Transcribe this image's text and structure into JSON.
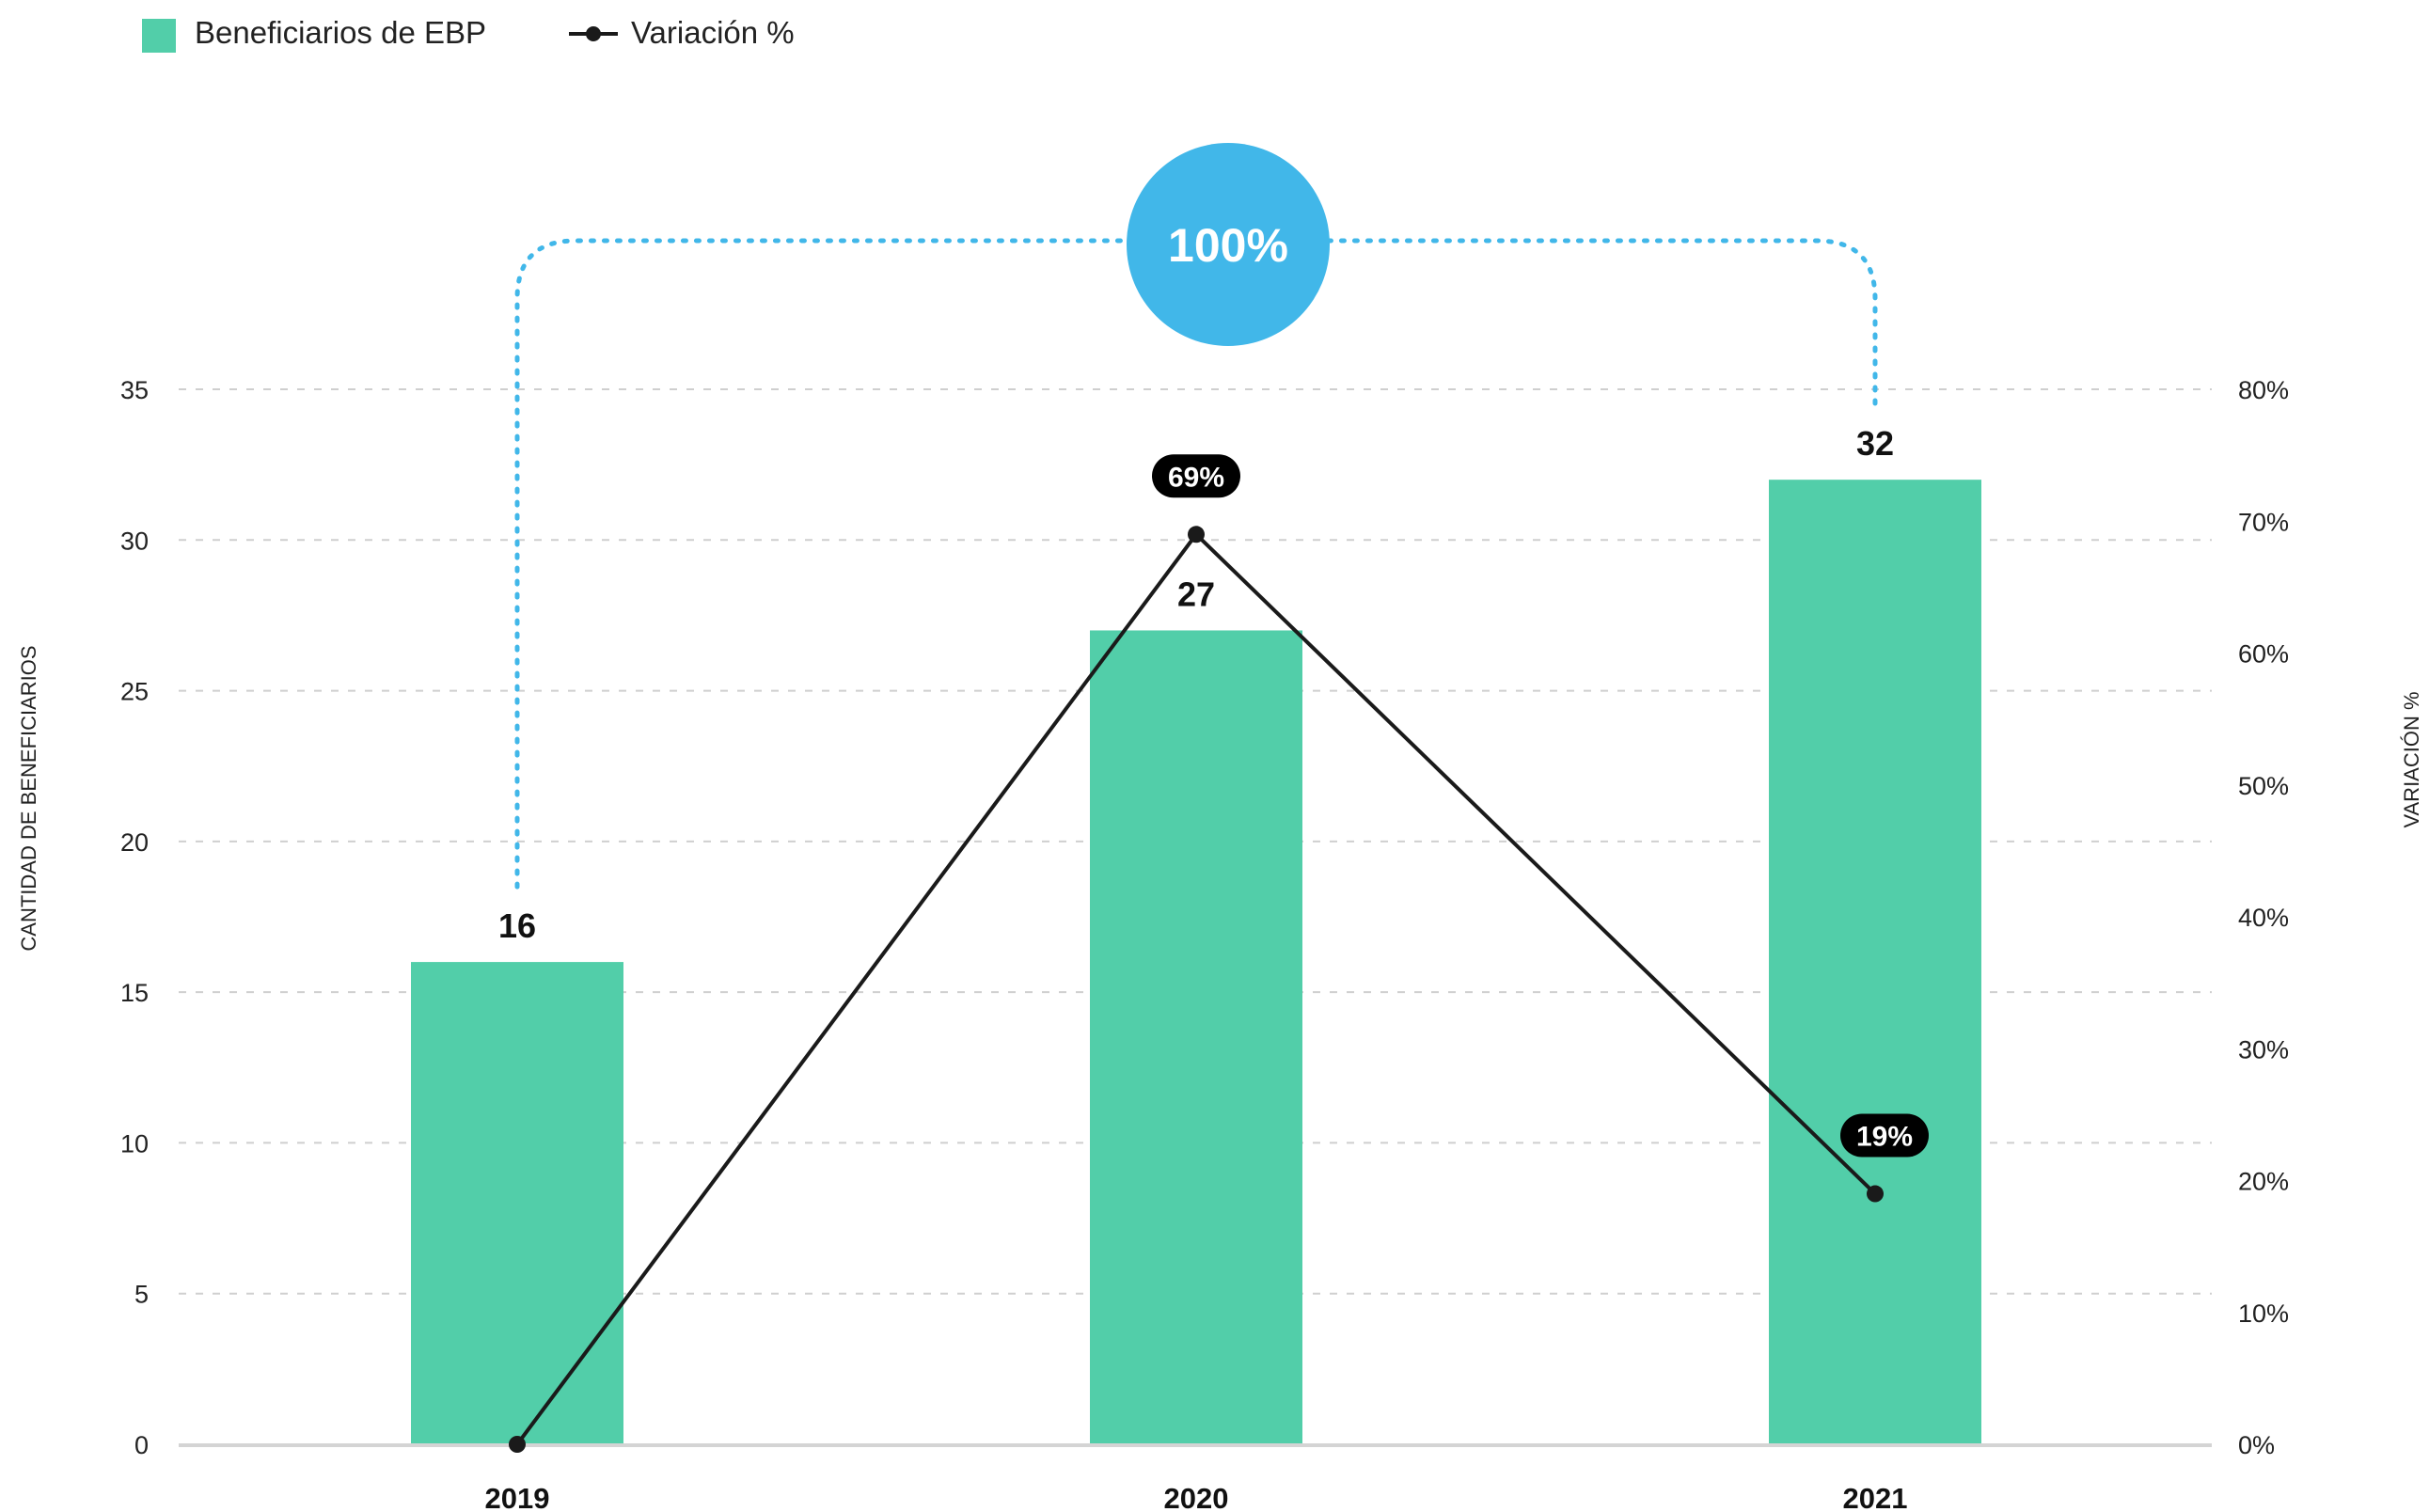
{
  "legend": {
    "bar_label": "Beneficiarios de EBP",
    "line_label": "Variación %"
  },
  "axes": {
    "left_title": "CANTIDAD DE BENEFICIARIOS",
    "right_title": "VARIACIÓN %"
  },
  "total_change": {
    "label": "100%",
    "from": "2019",
    "to": "2021"
  },
  "colors": {
    "bar": "#52cea9",
    "line": "#1a1a1a",
    "total_circle": "#41b7e9",
    "connector": "#41b7e9",
    "grid": "#cfcfcf",
    "badge": "#000000"
  },
  "chart_data": {
    "type": "bar",
    "categories": [
      "2019",
      "2020",
      "2021"
    ],
    "series": [
      {
        "name": "Beneficiarios de EBP",
        "type": "bar",
        "axis": "left",
        "values": [
          16,
          27,
          32
        ],
        "labels": [
          "16",
          "27",
          "32"
        ]
      },
      {
        "name": "Variación %",
        "type": "line",
        "axis": "right",
        "values": [
          0,
          69,
          19
        ],
        "labels": [
          "",
          "69%",
          "19%"
        ]
      }
    ],
    "ylabel": "CANTIDAD DE BENEFICIARIOS",
    "y2label": "VARIACIÓN %",
    "ylim": [
      0,
      35
    ],
    "y2lim": [
      0,
      80
    ],
    "yticks": [
      "0",
      "5",
      "10",
      "15",
      "20",
      "25",
      "30",
      "35"
    ],
    "y2ticks": [
      "0%",
      "10%",
      "20%",
      "30%",
      "40%",
      "50%",
      "60%",
      "70%",
      "80%"
    ],
    "grid": true,
    "legend_position": "top-left"
  }
}
